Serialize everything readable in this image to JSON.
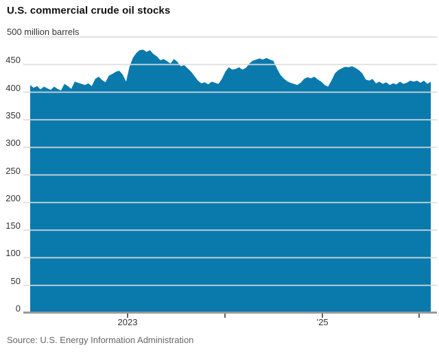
{
  "header": {
    "title": "U.S. commercial crude oil stocks"
  },
  "footer": {
    "source": "Source: U.S. Energy Information Administration"
  },
  "colors": {
    "area_fill": "#0a7aad",
    "gridline": "#dcdcdc",
    "axis_line": "#999999",
    "tick": "#2b2b2b",
    "title_text": "#111111",
    "label_text": "#333333",
    "source_text": "#666666"
  },
  "chart_data": {
    "type": "area",
    "title": "U.S. commercial crude oil stocks",
    "ylabel_top": "500 million barrels",
    "ylim": [
      0,
      500
    ],
    "grid": true,
    "y_tick_values": [
      0,
      50,
      100,
      150,
      200,
      250,
      300,
      350,
      400,
      450
    ],
    "gridline_values": [
      50,
      100,
      150,
      200,
      250,
      300,
      350,
      400,
      450,
      500
    ],
    "x_ticks": [
      {
        "label": "2023",
        "pos": 0.2432
      },
      {
        "label": "",
        "pos": 0.4863
      },
      {
        "label": "’25",
        "pos": 0.7295
      },
      {
        "label": "",
        "pos": 0.9709
      }
    ],
    "x_range_note": "weekly series shown between labeled year ticks 2023 and '25",
    "values": [
      413,
      408,
      411,
      405,
      410,
      407,
      404,
      410,
      406,
      403,
      415,
      411,
      406,
      419,
      417,
      415,
      413,
      416,
      411,
      424,
      428,
      422,
      418,
      430,
      433,
      437,
      439,
      432,
      419,
      446,
      462,
      471,
      476,
      477,
      473,
      476,
      469,
      465,
      458,
      460,
      456,
      452,
      460,
      455,
      447,
      449,
      443,
      437,
      429,
      421,
      416,
      418,
      414,
      419,
      417,
      415,
      424,
      437,
      445,
      441,
      442,
      445,
      441,
      444,
      452,
      457,
      459,
      461,
      459,
      462,
      459,
      457,
      444,
      432,
      425,
      420,
      417,
      415,
      413,
      417,
      424,
      427,
      425,
      428,
      423,
      419,
      413,
      410,
      421,
      434,
      440,
      443,
      446,
      445,
      447,
      444,
      440,
      434,
      423,
      421,
      424,
      416,
      419,
      415,
      418,
      413,
      416,
      414,
      419,
      415,
      417,
      421,
      419,
      421,
      417,
      421,
      415,
      419
    ]
  }
}
